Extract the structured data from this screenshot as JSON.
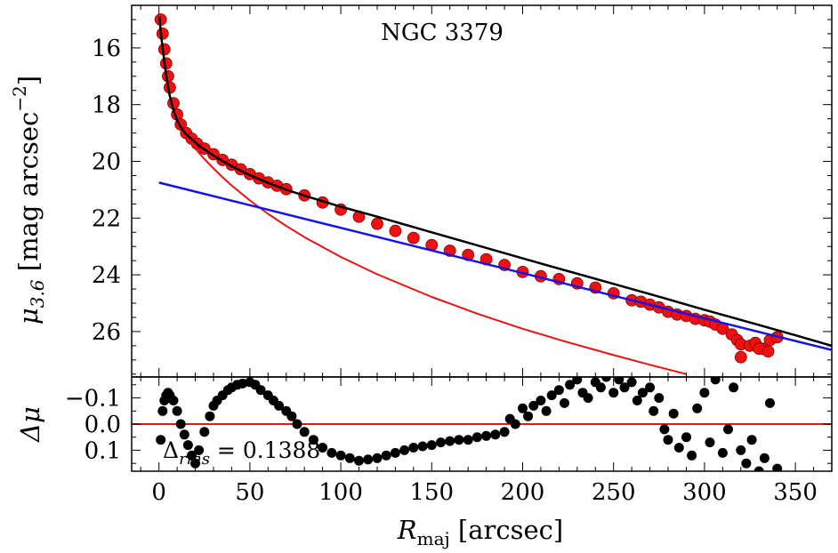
{
  "chart_data": [
    {
      "type": "scatter",
      "panel": "main",
      "title": "NGC 3379",
      "xlabel": "",
      "ylabel": {
        "base": "μ",
        "sub": "3.6",
        "unit_pre": " [mag arcsec",
        "unit_sup": "−2",
        "unit_post": "]"
      },
      "xlim": [
        -15,
        370
      ],
      "ylim": [
        27.6,
        14.5
      ],
      "y_inverted": true,
      "yticks": [
        16,
        18,
        20,
        22,
        24,
        26
      ],
      "ytick_labels": [
        "16",
        "18",
        "20",
        "22",
        "24",
        "26"
      ],
      "grid": false,
      "colors": {
        "data": "#ee1111",
        "total": "#000000",
        "bulge": "#ee1111",
        "disk": "#1111ee"
      },
      "series": [
        {
          "name": "Observed profile",
          "kind": "scatter",
          "x": [
            1,
            2,
            3,
            4,
            5,
            6,
            8,
            10,
            12,
            15,
            18,
            21,
            25,
            30,
            35,
            40,
            45,
            50,
            55,
            60,
            65,
            70,
            80,
            90,
            100,
            110,
            120,
            130,
            140,
            150,
            160,
            170,
            180,
            190,
            200,
            210,
            220,
            230,
            240,
            250,
            260,
            265,
            270,
            275,
            280,
            285,
            290,
            295,
            300,
            303,
            306,
            310,
            315,
            318,
            320,
            325,
            328,
            332,
            336,
            340
          ],
          "y": [
            15.0,
            15.5,
            16.05,
            16.55,
            17.0,
            17.4,
            17.95,
            18.35,
            18.7,
            19.0,
            19.2,
            19.38,
            19.55,
            19.75,
            19.95,
            20.12,
            20.28,
            20.45,
            20.6,
            20.74,
            20.86,
            20.98,
            21.2,
            21.45,
            21.7,
            21.95,
            22.2,
            22.45,
            22.7,
            22.95,
            23.15,
            23.3,
            23.45,
            23.65,
            23.9,
            24.05,
            24.15,
            24.3,
            24.45,
            24.65,
            24.9,
            24.95,
            25.05,
            25.15,
            25.3,
            25.4,
            25.45,
            25.55,
            25.6,
            25.65,
            25.75,
            25.9,
            26.1,
            26.3,
            26.45,
            26.5,
            26.4,
            26.6,
            26.3,
            26.2
          ]
        },
        {
          "name": "Outlier points",
          "kind": "scatter",
          "x": [
            320,
            330,
            335
          ],
          "y": [
            26.9,
            26.6,
            26.7
          ]
        },
        {
          "name": "Total model",
          "kind": "line",
          "x": [
            0.3,
            1,
            2,
            3,
            4,
            5,
            6,
            8,
            10,
            12,
            15,
            18,
            20,
            22,
            25,
            30,
            35,
            40,
            50,
            60,
            70,
            80,
            100,
            120,
            150,
            175,
            200,
            225,
            250,
            275,
            300,
            325,
            350,
            370
          ],
          "y": [
            14.9,
            15.45,
            16.0,
            16.5,
            16.95,
            17.35,
            17.7,
            18.2,
            18.55,
            18.8,
            19.05,
            19.22,
            19.33,
            19.45,
            19.58,
            19.8,
            19.99,
            20.17,
            20.49,
            20.76,
            21.0,
            21.21,
            21.6,
            21.95,
            22.5,
            22.96,
            23.42,
            23.87,
            24.32,
            24.77,
            25.23,
            25.68,
            26.13,
            26.5
          ]
        },
        {
          "name": "Bulge component",
          "kind": "line",
          "x": [
            0.3,
            1,
            2,
            3,
            4,
            5,
            6,
            8,
            10,
            12,
            15,
            20,
            25,
            30,
            35,
            40,
            50,
            60,
            70,
            80,
            100,
            120,
            150,
            175,
            200,
            225,
            250,
            270,
            290
          ],
          "y": [
            14.9,
            15.45,
            16.0,
            16.5,
            16.95,
            17.35,
            17.7,
            18.2,
            18.55,
            18.8,
            19.1,
            19.55,
            19.92,
            20.25,
            20.56,
            20.85,
            21.38,
            21.85,
            22.28,
            22.67,
            23.37,
            23.98,
            24.78,
            25.37,
            25.9,
            26.38,
            26.83,
            27.17,
            27.5
          ]
        },
        {
          "name": "Disk component",
          "kind": "line",
          "x": [
            0,
            370
          ],
          "y": [
            20.75,
            26.65
          ]
        }
      ]
    },
    {
      "type": "scatter",
      "panel": "residuals",
      "xlabel": {
        "base": "R",
        "sub": "maj",
        "unit": " [arcsec]"
      },
      "ylabel": "Δμ",
      "xlim": [
        -15,
        370
      ],
      "ylim": [
        -0.18,
        0.18
      ],
      "y_inverted": true,
      "xticks": [
        0,
        50,
        100,
        150,
        200,
        250,
        300,
        350
      ],
      "xtick_labels": [
        "0",
        "50",
        "100",
        "150",
        "200",
        "250",
        "300",
        "350"
      ],
      "yticks": [
        -0.1,
        0.0,
        0.1
      ],
      "ytick_labels": [
        "−0.1",
        "0.0",
        "0.1"
      ],
      "reference_line": {
        "y": 0.0,
        "color": "#ee1111"
      },
      "annotation": {
        "base": "Δ",
        "sub": "rms",
        "text": " = 0.1388"
      },
      "series": [
        {
          "name": "Residuals",
          "x": [
            1,
            2,
            3,
            4,
            5,
            6,
            8,
            10,
            12,
            14,
            16,
            18,
            20,
            22,
            25,
            28,
            30,
            32,
            35,
            38,
            40,
            43,
            46,
            50,
            53,
            56,
            60,
            63,
            66,
            70,
            73,
            76,
            80,
            85,
            90,
            95,
            100,
            105,
            110,
            115,
            120,
            125,
            130,
            135,
            140,
            145,
            150,
            155,
            160,
            165,
            170,
            175,
            180,
            185,
            190,
            193,
            196,
            200,
            203,
            206,
            210,
            213,
            216,
            220,
            223,
            226,
            230,
            233,
            236,
            240,
            243,
            246,
            250,
            253,
            256,
            260,
            263,
            266,
            270,
            272,
            275,
            278,
            280,
            283,
            286,
            290,
            293,
            296,
            300,
            303,
            306,
            310,
            313,
            316,
            320,
            323,
            326,
            330,
            333,
            336,
            340
          ],
          "y": [
            0.06,
            -0.05,
            -0.09,
            -0.11,
            -0.12,
            -0.11,
            -0.09,
            -0.05,
            0.0,
            0.04,
            0.08,
            0.12,
            0.15,
            0.1,
            0.03,
            -0.03,
            -0.07,
            -0.09,
            -0.11,
            -0.13,
            -0.14,
            -0.15,
            -0.155,
            -0.16,
            -0.15,
            -0.13,
            -0.11,
            -0.09,
            -0.07,
            -0.05,
            -0.03,
            0.0,
            0.03,
            0.06,
            0.09,
            0.11,
            0.12,
            0.13,
            0.14,
            0.135,
            0.13,
            0.12,
            0.11,
            0.1,
            0.09,
            0.085,
            0.08,
            0.07,
            0.065,
            0.06,
            0.06,
            0.05,
            0.045,
            0.04,
            0.03,
            -0.02,
            0.0,
            -0.06,
            -0.03,
            -0.07,
            -0.09,
            -0.05,
            -0.11,
            -0.13,
            -0.08,
            -0.15,
            -0.17,
            -0.12,
            -0.1,
            -0.16,
            -0.14,
            -0.18,
            -0.12,
            -0.17,
            -0.14,
            -0.16,
            -0.09,
            -0.12,
            -0.14,
            -0.05,
            -0.1,
            0.02,
            0.06,
            -0.04,
            0.09,
            0.05,
            0.12,
            -0.06,
            -0.12,
            0.07,
            -0.17,
            0.11,
            0.02,
            -0.14,
            0.1,
            0.15,
            0.06,
            0.18,
            0.13,
            -0.08,
            0.17
          ]
        }
      ]
    }
  ]
}
